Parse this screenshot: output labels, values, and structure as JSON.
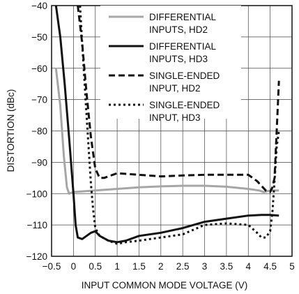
{
  "chart_data": {
    "type": "line",
    "title": "",
    "xlabel": "INPUT COMMON MODE VOLTAGE (V)",
    "ylabel": "DISTORTION (dBc)",
    "xlim": [
      -0.5,
      5
    ],
    "ylim": [
      -120,
      -40
    ],
    "x_ticks": [
      "−0.5",
      "0",
      "0.5",
      "1",
      "1.5",
      "2",
      "2.5",
      "3",
      "3.5",
      "4",
      "4.5",
      "5"
    ],
    "y_ticks": [
      "−40",
      "−50",
      "−60",
      "−70",
      "−80",
      "−90",
      "−100",
      "−110",
      "−120"
    ],
    "grid": true,
    "legend_position": "top-right",
    "series": [
      {
        "name": "DIFFERENTIAL INPUTS, HD2",
        "legend_lines": [
          "DIFFERENTIAL",
          "INPUTS, HD2"
        ],
        "style": "solid",
        "color": "#a6a6a6",
        "x": [
          -0.4,
          -0.3,
          -0.22,
          -0.15,
          -0.1,
          0.0,
          0.5,
          1.0,
          1.5,
          2.0,
          2.5,
          3.0,
          3.5,
          4.0,
          4.25,
          4.35,
          4.5,
          4.7
        ],
        "y": [
          -60,
          -72,
          -88,
          -98,
          -100,
          -99.5,
          -99,
          -98.5,
          -98,
          -97.7,
          -97.5,
          -97.5,
          -97.8,
          -98.5,
          -99,
          -99.5,
          -99,
          -99
        ]
      },
      {
        "name": "DIFFERENTIAL INPUTS, HD3",
        "legend_lines": [
          "DIFFERENTIAL",
          "INPUTS, HD3"
        ],
        "style": "solid",
        "color": "#111111",
        "x": [
          -0.4,
          -0.3,
          -0.2,
          -0.1,
          0.0,
          0.05,
          0.1,
          0.2,
          0.3,
          0.4,
          0.5,
          0.6,
          0.8,
          1.0,
          1.2,
          1.5,
          2.0,
          2.5,
          3.0,
          3.5,
          4.0,
          4.3,
          4.5,
          4.7
        ],
        "y": [
          -40,
          -50,
          -65,
          -82,
          -100,
          -110,
          -114,
          -114.5,
          -113.5,
          -112.5,
          -112,
          -113.5,
          -115,
          -115.5,
          -115,
          -113.5,
          -112.5,
          -111,
          -109,
          -108,
          -107,
          -106.8,
          -106.8,
          -107
        ]
      },
      {
        "name": "SINGLE-ENDED INPUT, HD2",
        "legend_lines": [
          "SINGLE-ENDED",
          "INPUT, HD2"
        ],
        "style": "dashed",
        "color": "#111111",
        "x": [
          0.1,
          0.2,
          0.3,
          0.4,
          0.5,
          0.6,
          0.7,
          0.9,
          1.0,
          1.5,
          2.0,
          2.5,
          3.0,
          3.5,
          4.0,
          4.2,
          4.4,
          4.5,
          4.55,
          4.6,
          4.65,
          4.7
        ],
        "y": [
          -40,
          -52,
          -68,
          -82,
          -92,
          -95,
          -95,
          -94,
          -93.5,
          -94,
          -94.5,
          -94.2,
          -94,
          -94,
          -94,
          -96,
          -99,
          -99.5,
          -98,
          -95,
          -80,
          -64
        ]
      },
      {
        "name": "SINGLE-ENDED INPUT, HD3",
        "legend_lines": [
          "SINGLE-ENDED",
          "INPUT, HD3"
        ],
        "style": "dotted",
        "color": "#111111",
        "x": [
          0.15,
          0.2,
          0.3,
          0.4,
          0.45,
          0.5,
          0.6,
          0.8,
          1.0,
          1.2,
          1.5,
          2.0,
          2.5,
          3.0,
          3.5,
          4.0,
          4.2,
          4.3,
          4.4,
          4.5,
          4.55,
          4.6,
          4.65,
          4.7
        ],
        "y": [
          -40,
          -52,
          -75,
          -97,
          -105,
          -111,
          -113.5,
          -115,
          -116,
          -115.5,
          -115,
          -114,
          -113,
          -110,
          -109.5,
          -110,
          -112.5,
          -114,
          -114,
          -112,
          -106,
          -96,
          -85,
          -80
        ]
      }
    ]
  }
}
